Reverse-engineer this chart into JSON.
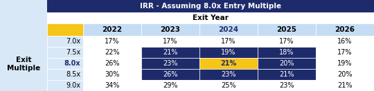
{
  "title": "IRR - Assuming 8.0x Entry Multiple",
  "col_header_label": "Exit Year",
  "row_header_label_1": "Exit",
  "row_header_label_2": "Multiple",
  "col_years": [
    "2022",
    "2023",
    "2024",
    "2025",
    "2026"
  ],
  "row_multiples": [
    "7.0x",
    "7.5x",
    "8.0x",
    "8.5x",
    "9.0x"
  ],
  "values": [
    [
      "17%",
      "17%",
      "17%",
      "17%",
      "16%"
    ],
    [
      "22%",
      "21%",
      "19%",
      "18%",
      "17%"
    ],
    [
      "26%",
      "23%",
      "21%",
      "20%",
      "19%"
    ],
    [
      "30%",
      "26%",
      "23%",
      "21%",
      "20%"
    ],
    [
      "34%",
      "29%",
      "25%",
      "23%",
      "21%"
    ]
  ],
  "title_bg": "#1e2b6b",
  "title_fg": "#ffffff",
  "exit_year_bg": "#ffffff",
  "exit_year_fg": "#000000",
  "header_bg": "#c5ddf4",
  "header_fg_normal": "#000000",
  "header_fg_2024": "#1e2b6b",
  "highlight_bg": "#1e2b6b",
  "highlight_fg": "#ffffff",
  "gold_bg": "#f5c518",
  "gold_fg": "#1e2b6b",
  "row_label_bg": "#d9e8f7",
  "cell_bg": "#ffffff",
  "cell_fg": "#000000",
  "left_bg": "#d9e8f7",
  "mult_8x_fg": "#1e2b6b",
  "highlighted_rows": [
    1,
    2,
    3
  ],
  "highlighted_cols": [
    1,
    2,
    3
  ],
  "gold_cell_row": 2,
  "gold_cell_col": 2,
  "figsize": [
    5.4,
    1.32
  ],
  "dpi": 100
}
